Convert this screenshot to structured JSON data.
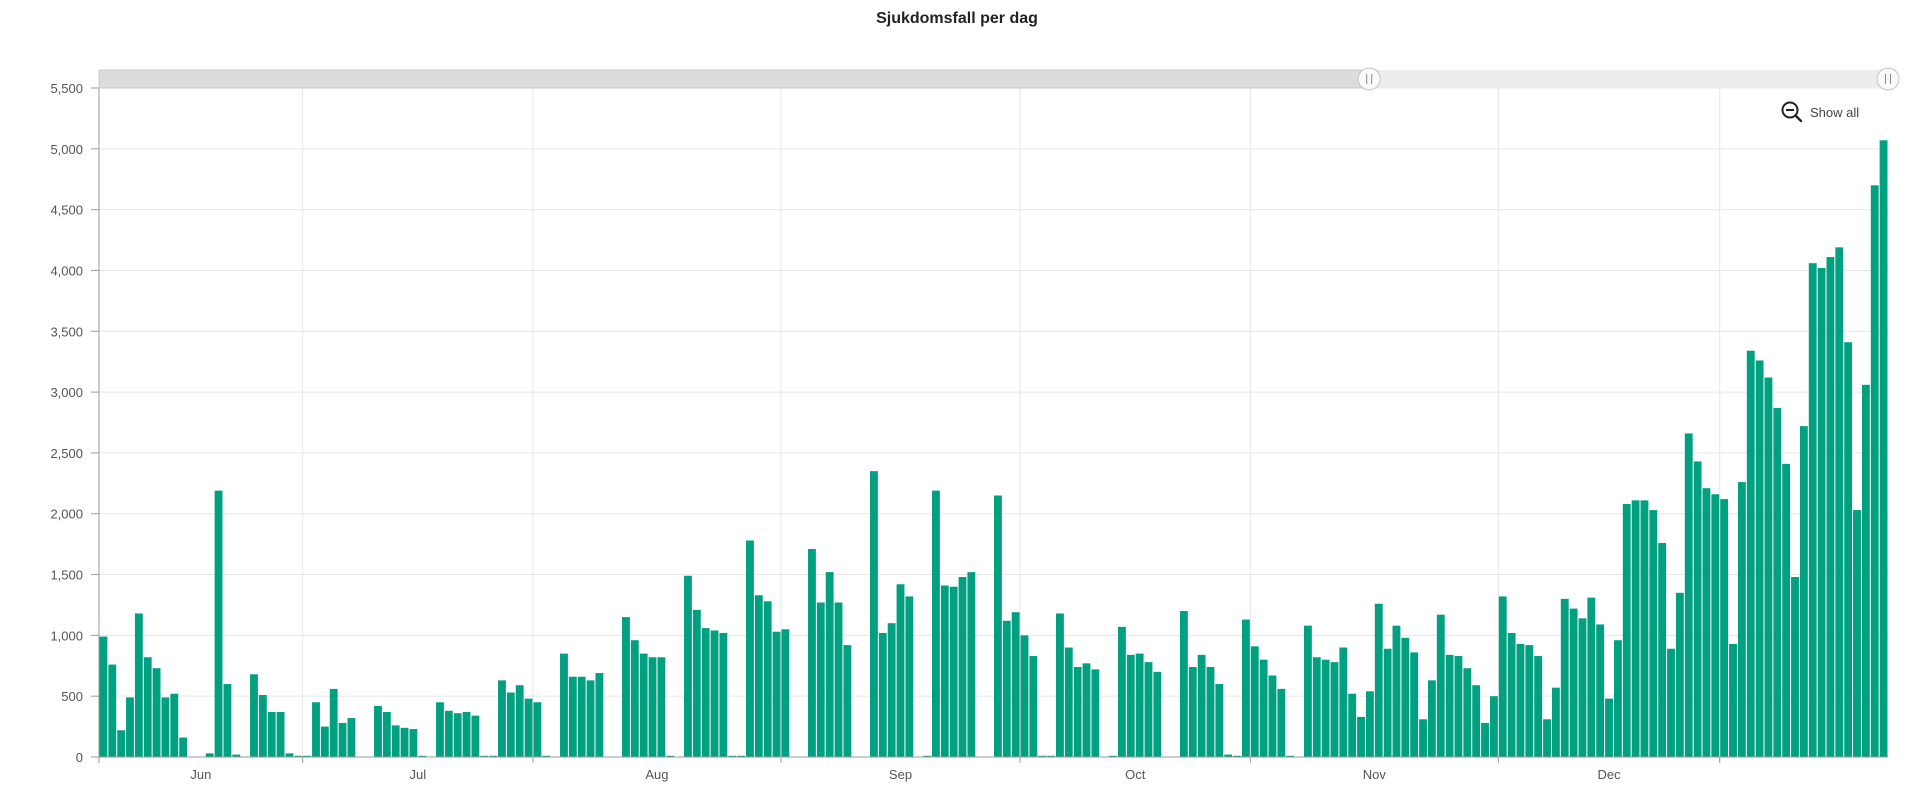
{
  "chart_data": {
    "type": "bar",
    "title": "Sjukdomsfall per dag",
    "xlabel": "",
    "ylabel": "",
    "ylim": [
      0,
      5500
    ],
    "y_ticks": [
      0,
      500,
      1000,
      1500,
      2000,
      2500,
      3000,
      3500,
      4000,
      4500,
      5000,
      5500
    ],
    "y_tick_labels": [
      "0",
      "500",
      "1,000",
      "1,500",
      "2,000",
      "2,500",
      "3,000",
      "3,500",
      "4,000",
      "4,500",
      "5,000",
      "5,500"
    ],
    "x_tick_labels": [
      "Jun",
      "Jul",
      "Aug",
      "Sep",
      "Oct",
      "Nov",
      "Dec"
    ],
    "grid": true,
    "bar_color": "#00a080",
    "values": [
      990,
      760,
      220,
      490,
      1180,
      820,
      730,
      490,
      520,
      160,
      0,
      0,
      30,
      2190,
      600,
      20,
      0,
      680,
      510,
      370,
      370,
      30,
      10,
      10,
      450,
      250,
      560,
      280,
      320,
      0,
      0,
      420,
      370,
      260,
      240,
      230,
      10,
      0,
      450,
      380,
      360,
      370,
      340,
      10,
      10,
      630,
      530,
      590,
      480,
      450,
      10,
      0,
      850,
      660,
      660,
      630,
      690,
      0,
      0,
      1150,
      960,
      850,
      820,
      820,
      10,
      0,
      1490,
      1210,
      1060,
      1040,
      1020,
      10,
      10,
      1780,
      1330,
      1280,
      1030,
      1050,
      0,
      0,
      1710,
      1270,
      1520,
      1270,
      920,
      0,
      0,
      2350,
      1020,
      1100,
      1420,
      1320,
      0,
      10,
      2190,
      1410,
      1400,
      1480,
      1520,
      0,
      0,
      2150,
      1120,
      1190,
      1000,
      830,
      10,
      10,
      1180,
      900,
      740,
      770,
      720,
      0,
      10,
      1070,
      840,
      850,
      780,
      700,
      0,
      0,
      1200,
      740,
      840,
      740,
      600,
      20,
      10,
      1130,
      910,
      800,
      670,
      560,
      10,
      0,
      1080,
      820,
      800,
      780,
      900,
      520,
      330,
      540,
      1260,
      890,
      1080,
      980,
      860,
      310,
      630,
      1170,
      840,
      830,
      730,
      590,
      280,
      500,
      1320,
      1020,
      930,
      920,
      830,
      310,
      570,
      1300,
      1220,
      1140,
      1310,
      1090,
      480,
      960,
      2080,
      2110,
      2110,
      2030,
      1760,
      890,
      1350,
      2660,
      2430,
      2210,
      2160,
      2120,
      930,
      2260,
      3340,
      3260,
      3120,
      2870,
      2410,
      1480,
      2720,
      4060,
      4020,
      4110,
      4190,
      3410,
      2030,
      3060,
      4700,
      5070
    ]
  },
  "controls": {
    "show_all_label": "Show all",
    "show_all_icon": "zoom-out-icon",
    "scrollbar_range": [
      0.71,
      1.0
    ]
  }
}
